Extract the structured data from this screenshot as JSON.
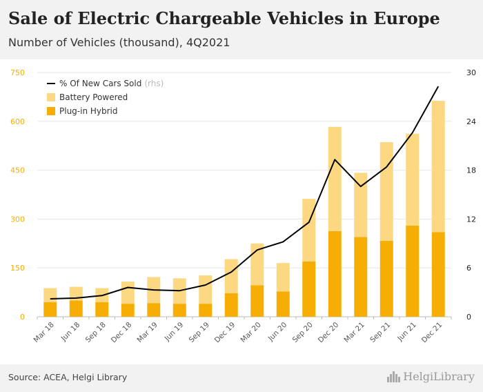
{
  "header": {
    "title": "Sale of Electric Chargeable Vehicles in Europe",
    "subtitle": "Number of Vehicles (thousand), 4Q2021"
  },
  "footer": {
    "source": "Source: ACEA, Helgi Library",
    "brand": "HelgiLibrary"
  },
  "legend": {
    "line_label": "% Of New Cars Sold",
    "line_note": "(rhs)",
    "battery_label": "Battery Powered",
    "hybrid_label": "Plug-in Hybrid"
  },
  "colors": {
    "battery": "#fdd882",
    "hybrid": "#f6ae05",
    "line": "#000000",
    "left_axis": "#f6ae05",
    "right_axis": "#222222",
    "grid": "#e6e6e6"
  },
  "chart_data": {
    "type": "bar",
    "stacked": true,
    "categories": [
      "Mar 18",
      "Jun 18",
      "Sep 18",
      "Dec 18",
      "Mar 19",
      "Jun 19",
      "Sep 19",
      "Dec 19",
      "Mar 20",
      "Jun 20",
      "Sep 20",
      "Dec 20",
      "Mar 21",
      "Sep 21",
      "Jun 21",
      "Dec 21"
    ],
    "series": [
      {
        "name": "Plug-in Hybrid",
        "axis": "left",
        "values": [
          45,
          50,
          45,
          40,
          42,
          40,
          40,
          72,
          97,
          78,
          170,
          263,
          245,
          233,
          280,
          260
        ]
      },
      {
        "name": "Battery Powered",
        "axis": "left",
        "values": [
          43,
          42,
          43,
          68,
          80,
          78,
          87,
          105,
          128,
          87,
          192,
          320,
          197,
          303,
          282,
          403
        ]
      },
      {
        "name": "% Of New Cars Sold",
        "axis": "right",
        "type": "line",
        "values": [
          2.2,
          2.3,
          2.6,
          3.6,
          3.3,
          3.2,
          3.9,
          5.5,
          8.2,
          9.2,
          11.6,
          19.3,
          16.0,
          18.4,
          22.6,
          28.3
        ]
      }
    ],
    "y_left": {
      "range": [
        0,
        750
      ],
      "ticks": [
        0,
        150,
        300,
        450,
        600,
        750
      ]
    },
    "y_right": {
      "range": [
        0,
        30
      ],
      "ticks": [
        0,
        6,
        12,
        18,
        24,
        30
      ]
    },
    "legend_position": "top-left",
    "grid": true
  }
}
